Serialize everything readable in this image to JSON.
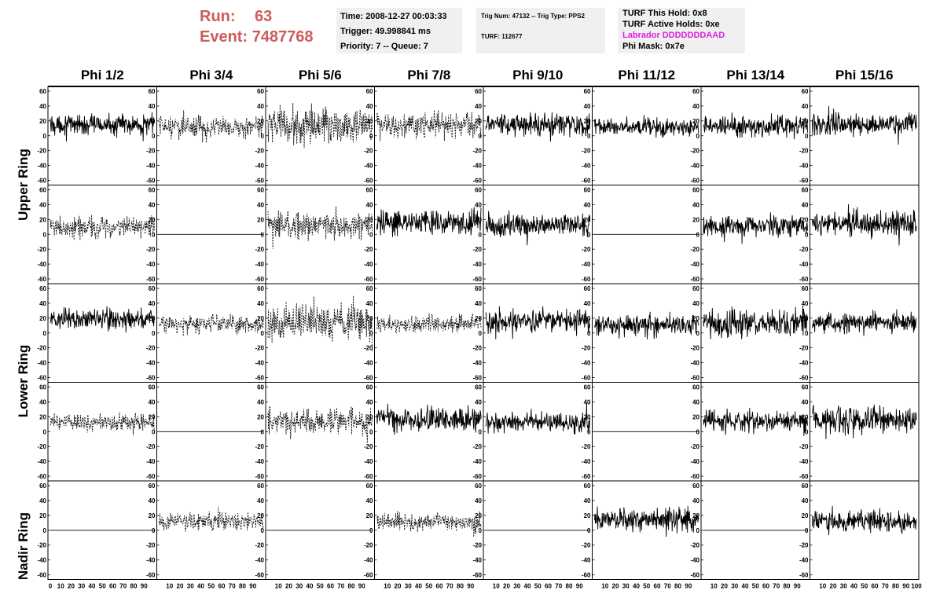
{
  "header": {
    "run_label": "Run:",
    "run_value": "63",
    "event_label": "Event:",
    "event_value": "7487768",
    "time": "Time: 2008-12-27 00:03:33",
    "trigger": "Trigger: 49.998841 ms",
    "priority": "Priority: 7 -- Queue: 7",
    "trig_info": "Trig Num: 47132 -- Trig Type: PPS2",
    "turf": "TURF: 112677",
    "turf_hold": "TURF This Hold: 0x8",
    "turf_active": "TURF Active Holds: 0xe",
    "labrador": "Labrador DDDDDDDAAD",
    "phi_mask": "Phi Mask: 0x7e"
  },
  "phi_headers": [
    "Phi 1/2",
    "Phi 3/4",
    "Phi 5/6",
    "Phi 7/8",
    "Phi 9/10",
    "Phi 11/12",
    "Phi 13/14",
    "Phi 15/16"
  ],
  "ring_labels": [
    "Upper Ring",
    "Lower Ring",
    "Nadir Ring"
  ],
  "colors": {
    "run_text": "#cd5c5c",
    "labrador_text": "#e020e0",
    "panel_bg": "#f0f0f0"
  },
  "chart_data": {
    "type": "line",
    "title": "",
    "xlabel": "",
    "ylabel": "",
    "xlim": [
      0,
      100
    ],
    "ylim": [
      -60,
      60
    ],
    "x_ticks": [
      "0",
      "10",
      "20",
      "30",
      "40",
      "50",
      "60",
      "70",
      "80",
      "90",
      "100"
    ],
    "y_ticks": [
      "60",
      "40",
      "20",
      "0",
      "-20",
      "-40",
      "-60"
    ],
    "panels": [
      {
        "row": 0,
        "col": 0,
        "style": "solid",
        "mean": 15,
        "amp": 14
      },
      {
        "row": 0,
        "col": 1,
        "style": "dashed",
        "mean": 12,
        "amp": 14
      },
      {
        "row": 0,
        "col": 2,
        "style": "dashed",
        "mean": 14,
        "amp": 25
      },
      {
        "row": 0,
        "col": 3,
        "style": "dashed",
        "mean": 14,
        "amp": 18
      },
      {
        "row": 0,
        "col": 4,
        "style": "solid",
        "mean": 16,
        "amp": 16
      },
      {
        "row": 0,
        "col": 5,
        "style": "solid",
        "mean": 12,
        "amp": 12
      },
      {
        "row": 0,
        "col": 6,
        "style": "solid",
        "mean": 13,
        "amp": 15
      },
      {
        "row": 0,
        "col": 7,
        "style": "solid",
        "mean": 16,
        "amp": 16
      },
      {
        "row": 1,
        "col": 0,
        "style": "dashed",
        "mean": 10,
        "amp": 14
      },
      {
        "row": 1,
        "col": 1,
        "style": "flat",
        "mean": 0,
        "amp": 0
      },
      {
        "row": 1,
        "col": 2,
        "style": "dashed",
        "mean": 12,
        "amp": 18
      },
      {
        "row": 1,
        "col": 3,
        "style": "solid",
        "mean": 16,
        "amp": 18
      },
      {
        "row": 1,
        "col": 4,
        "style": "solid",
        "mean": 12,
        "amp": 15
      },
      {
        "row": 1,
        "col": 5,
        "style": "flat",
        "mean": 0,
        "amp": 0
      },
      {
        "row": 1,
        "col": 6,
        "style": "solid",
        "mean": 12,
        "amp": 14
      },
      {
        "row": 1,
        "col": 7,
        "style": "solid",
        "mean": 14,
        "amp": 16
      },
      {
        "row": 2,
        "col": 0,
        "style": "solid",
        "mean": 18,
        "amp": 14
      },
      {
        "row": 2,
        "col": 1,
        "style": "dashed",
        "mean": 12,
        "amp": 12
      },
      {
        "row": 2,
        "col": 2,
        "style": "dashed",
        "mean": 13,
        "amp": 25
      },
      {
        "row": 2,
        "col": 3,
        "style": "dashed",
        "mean": 12,
        "amp": 12
      },
      {
        "row": 2,
        "col": 4,
        "style": "solid",
        "mean": 16,
        "amp": 16
      },
      {
        "row": 2,
        "col": 5,
        "style": "solid",
        "mean": 11,
        "amp": 14
      },
      {
        "row": 2,
        "col": 6,
        "style": "solid",
        "mean": 13,
        "amp": 18
      },
      {
        "row": 2,
        "col": 7,
        "style": "solid",
        "mean": 14,
        "amp": 14
      },
      {
        "row": 3,
        "col": 0,
        "style": "dashed",
        "mean": 12,
        "amp": 12
      },
      {
        "row": 3,
        "col": 1,
        "style": "flat",
        "mean": 0,
        "amp": 0
      },
      {
        "row": 3,
        "col": 2,
        "style": "dashed",
        "mean": 14,
        "amp": 18
      },
      {
        "row": 3,
        "col": 3,
        "style": "solid",
        "mean": 16,
        "amp": 18
      },
      {
        "row": 3,
        "col": 4,
        "style": "solid",
        "mean": 12,
        "amp": 14
      },
      {
        "row": 3,
        "col": 5,
        "style": "flat",
        "mean": 0,
        "amp": 0
      },
      {
        "row": 3,
        "col": 6,
        "style": "solid",
        "mean": 14,
        "amp": 14
      },
      {
        "row": 3,
        "col": 7,
        "style": "solid",
        "mean": 16,
        "amp": 18
      },
      {
        "row": 4,
        "col": 0,
        "style": "flat",
        "mean": 0,
        "amp": 0
      },
      {
        "row": 4,
        "col": 1,
        "style": "dashed",
        "mean": 12,
        "amp": 12
      },
      {
        "row": 4,
        "col": 2,
        "style": "flat",
        "mean": 0,
        "amp": 0
      },
      {
        "row": 4,
        "col": 3,
        "style": "dashed",
        "mean": 11,
        "amp": 12
      },
      {
        "row": 4,
        "col": 4,
        "style": "flat",
        "mean": 0,
        "amp": 0
      },
      {
        "row": 4,
        "col": 5,
        "style": "solid",
        "mean": 14,
        "amp": 16
      },
      {
        "row": 4,
        "col": 6,
        "style": "flat",
        "mean": 0,
        "amp": 0
      },
      {
        "row": 4,
        "col": 7,
        "style": "solid",
        "mean": 12,
        "amp": 14
      }
    ]
  }
}
